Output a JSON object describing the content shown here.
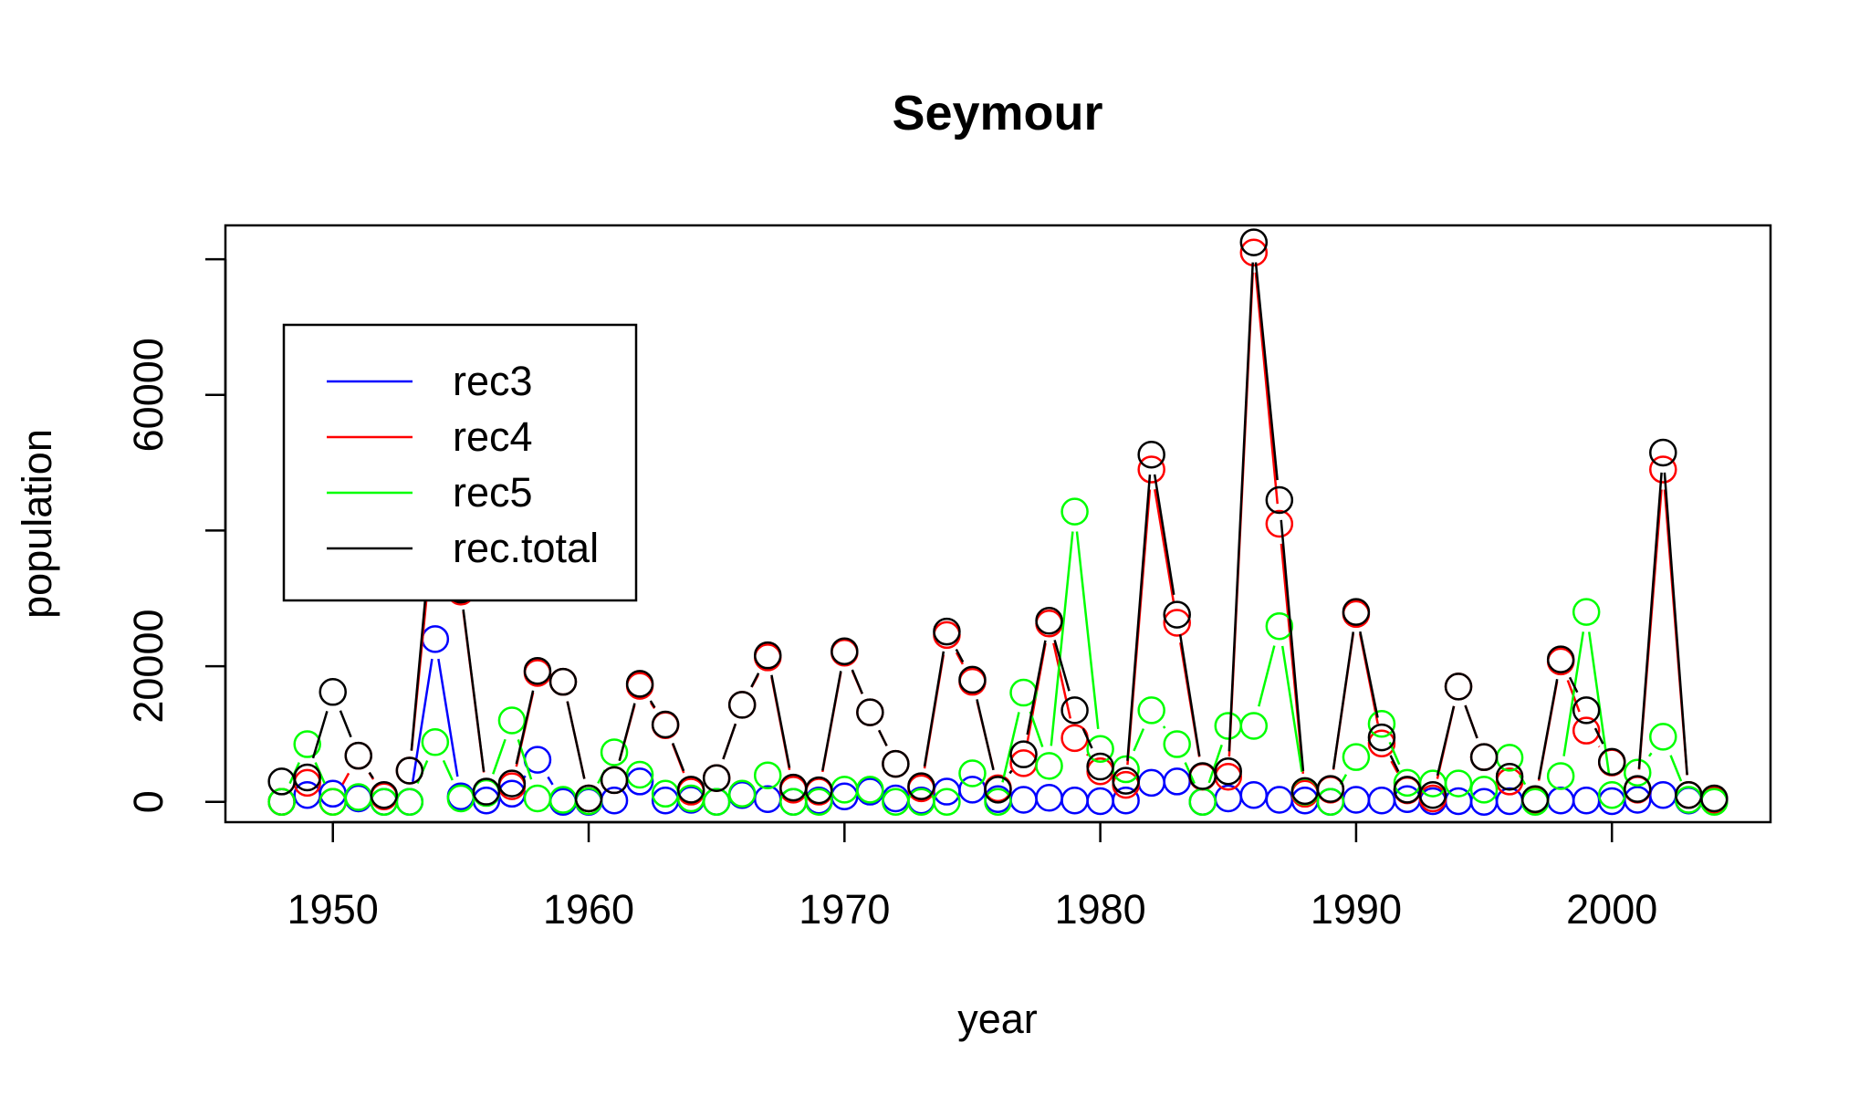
{
  "chart_data": {
    "type": "line",
    "title": "Seymour",
    "xlabel": "year",
    "ylabel": "population",
    "xlim": [
      1945.8,
      2006.2
    ],
    "ylim": [
      -3000,
      85000
    ],
    "x_ticks": [
      1950,
      1960,
      1970,
      1980,
      1990,
      2000
    ],
    "x_tick_labels": [
      "1950",
      "1960",
      "1970",
      "1980",
      "1990",
      "2000"
    ],
    "y_ticks": [
      0,
      20000,
      40000,
      60000,
      80000
    ],
    "y_tick_labels": [
      "0",
      "20000",
      "",
      "60000",
      ""
    ],
    "grid": false,
    "legend_position": "top-left",
    "x": [
      1948,
      1949,
      1950,
      1951,
      1952,
      1953,
      1954,
      1955,
      1956,
      1957,
      1958,
      1959,
      1960,
      1961,
      1962,
      1963,
      1964,
      1965,
      1966,
      1967,
      1968,
      1969,
      1970,
      1971,
      1972,
      1973,
      1974,
      1975,
      1976,
      1977,
      1978,
      1979,
      1980,
      1981,
      1982,
      1983,
      1984,
      1985,
      1986,
      1987,
      1988,
      1989,
      1990,
      1991,
      1992,
      1993,
      1994,
      1995,
      1996,
      1997,
      1998,
      1999,
      2000,
      2001,
      2002,
      2003,
      2004
    ],
    "series": [
      {
        "name": "rec3",
        "color": "#0000ff",
        "values": [
          0,
          1000,
          1200,
          500,
          0,
          0,
          24000,
          800,
          200,
          1200,
          6200,
          0,
          0,
          200,
          3000,
          200,
          300,
          0,
          1000,
          400,
          0,
          200,
          800,
          1500,
          500,
          200,
          1500,
          1800,
          400,
          300,
          600,
          200,
          100,
          200,
          2800,
          3000,
          0,
          500,
          1000,
          300,
          200,
          0,
          300,
          200,
          400,
          100,
          100,
          0,
          100,
          100,
          200,
          200,
          100,
          300,
          1000,
          200,
          200
        ]
      },
      {
        "name": "rec4",
        "color": "#ff0000",
        "values": [
          0,
          2800,
          0,
          6800,
          800,
          4600,
          43000,
          31000,
          1400,
          2300,
          19000,
          17700,
          500,
          3200,
          17100,
          11300,
          1500,
          3500,
          14300,
          21300,
          1800,
          1500,
          22000,
          13200,
          5600,
          2000,
          24600,
          17700,
          2000,
          5700,
          26300,
          9400,
          4500,
          2500,
          49000,
          26400,
          3700,
          3700,
          81000,
          41000,
          1200,
          1800,
          27700,
          8600,
          1700,
          500,
          17000,
          6600,
          3000,
          200,
          20700,
          10500,
          5800,
          1800,
          49000,
          1000,
          300
        ]
      },
      {
        "name": "rec5",
        "color": "#00ff00",
        "values": [
          0,
          8500,
          0,
          700,
          0,
          0,
          8800,
          500,
          1300,
          12000,
          500,
          300,
          100,
          7300,
          4000,
          1200,
          500,
          0,
          1200,
          3900,
          0,
          0,
          1800,
          1800,
          0,
          0,
          0,
          4200,
          0,
          16100,
          5300,
          42800,
          7800,
          4800,
          13500,
          8500,
          0,
          11200,
          11200,
          25900,
          1500,
          0,
          6600,
          11500,
          2800,
          2700,
          2700,
          1800,
          6500,
          0,
          3800,
          28000,
          1000,
          4300,
          9600,
          300,
          0
        ]
      },
      {
        "name": "rec.total",
        "color": "#000000",
        "values": [
          3000,
          3600,
          16200,
          6800,
          1000,
          4600,
          46000,
          31300,
          1500,
          2700,
          19300,
          17700,
          500,
          3200,
          17400,
          11400,
          1800,
          3500,
          14300,
          21600,
          2100,
          1700,
          22200,
          13200,
          5600,
          2300,
          25100,
          18000,
          1800,
          7000,
          26700,
          13500,
          5200,
          3100,
          51200,
          27600,
          3800,
          4500,
          82500,
          44500,
          1600,
          1900,
          28000,
          9500,
          1800,
          1000,
          17000,
          6600,
          3700,
          400,
          21000,
          13500,
          5900,
          1900,
          51500,
          1000,
          500
        ]
      }
    ]
  }
}
